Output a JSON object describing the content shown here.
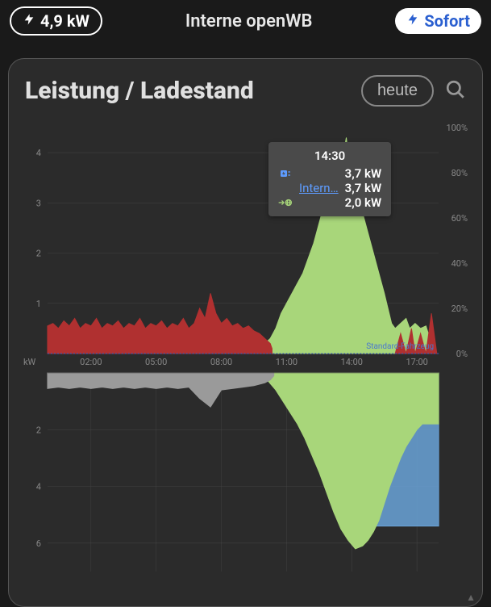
{
  "topbar": {
    "power_value": "4,9 kW",
    "title": "Interne openWB",
    "sofort_label": "Sofort"
  },
  "card": {
    "title": "Leistung / Ladestand",
    "range_btn": "heute"
  },
  "tooltip": {
    "time": "14:30",
    "row1": {
      "value": "3,7 kW",
      "color": "#5e9cff"
    },
    "row2": {
      "label": "Intern…",
      "value": "3,7 kW"
    },
    "row3": {
      "value": "2,0 kW",
      "color": "#a8d67a"
    }
  },
  "chart": {
    "type": "area-combo",
    "x_hours": [
      "02:00",
      "05:00",
      "08:00",
      "11:00",
      "14:00",
      "17:00"
    ],
    "y_top_ticks": [
      1,
      2,
      3,
      4
    ],
    "y_top_unit": "kW",
    "y_right_ticks_pct": [
      "0%",
      "20%",
      "40%",
      "60%",
      "80%",
      "100%"
    ],
    "y_bottom_ticks": [
      2,
      4,
      6
    ],
    "baseline_y": 0,
    "annotation_label": "Standard-Fahrzeug",
    "colors": {
      "red": "#b03030",
      "green": "#a8d67a",
      "gray": "#9a9a9a",
      "blue": "#6aa3d8",
      "baseline": "#3a5fc8",
      "grid": "#444444",
      "bg": "#2b2b2b",
      "text": "#888888"
    },
    "x_range_minutes": [
      0,
      1080
    ],
    "top_y_range_kw": [
      0,
      4.5
    ],
    "bottom_y_range_kw": [
      0,
      7
    ],
    "series_red_top": [
      [
        0,
        0.55
      ],
      [
        15,
        0.6
      ],
      [
        30,
        0.5
      ],
      [
        45,
        0.65
      ],
      [
        60,
        0.55
      ],
      [
        75,
        0.7
      ],
      [
        90,
        0.5
      ],
      [
        105,
        0.6
      ],
      [
        120,
        0.55
      ],
      [
        135,
        0.7
      ],
      [
        150,
        0.5
      ],
      [
        165,
        0.6
      ],
      [
        180,
        0.55
      ],
      [
        195,
        0.65
      ],
      [
        210,
        0.5
      ],
      [
        225,
        0.6
      ],
      [
        240,
        0.55
      ],
      [
        255,
        0.7
      ],
      [
        270,
        0.5
      ],
      [
        285,
        0.6
      ],
      [
        300,
        0.55
      ],
      [
        315,
        0.65
      ],
      [
        330,
        0.5
      ],
      [
        345,
        0.6
      ],
      [
        360,
        0.55
      ],
      [
        375,
        0.7
      ],
      [
        390,
        0.5
      ],
      [
        405,
        0.6
      ],
      [
        420,
        0.9
      ],
      [
        435,
        0.7
      ],
      [
        450,
        1.2
      ],
      [
        465,
        0.8
      ],
      [
        480,
        0.6
      ],
      [
        495,
        0.7
      ],
      [
        510,
        0.55
      ],
      [
        525,
        0.6
      ],
      [
        540,
        0.5
      ],
      [
        555,
        0.55
      ],
      [
        570,
        0.45
      ],
      [
        585,
        0.4
      ],
      [
        600,
        0.3
      ],
      [
        615,
        0.2
      ],
      [
        620,
        0.1
      ]
    ],
    "series_green_top": [
      [
        585,
        0.0
      ],
      [
        600,
        0.2
      ],
      [
        615,
        0.3
      ],
      [
        630,
        0.5
      ],
      [
        645,
        0.8
      ],
      [
        660,
        1.0
      ],
      [
        675,
        1.2
      ],
      [
        690,
        1.4
      ],
      [
        705,
        1.6
      ],
      [
        720,
        1.9
      ],
      [
        735,
        2.2
      ],
      [
        750,
        2.6
      ],
      [
        765,
        3.0
      ],
      [
        780,
        3.4
      ],
      [
        795,
        3.8
      ],
      [
        805,
        4.2
      ],
      [
        815,
        3.9
      ],
      [
        825,
        4.3
      ],
      [
        835,
        3.6
      ],
      [
        845,
        4.0
      ],
      [
        855,
        3.2
      ],
      [
        870,
        2.8
      ],
      [
        885,
        2.4
      ],
      [
        900,
        2.0
      ],
      [
        915,
        1.6
      ],
      [
        930,
        1.2
      ],
      [
        940,
        0.9
      ],
      [
        950,
        0.6
      ],
      [
        960,
        0.5
      ],
      [
        975,
        0.6
      ],
      [
        990,
        0.7
      ],
      [
        1000,
        0.5
      ],
      [
        1015,
        0.6
      ],
      [
        1030,
        0.5
      ],
      [
        1045,
        0.55
      ],
      [
        1060,
        0.2
      ]
    ],
    "series_red_top_right": [
      [
        960,
        0.0
      ],
      [
        975,
        0.4
      ],
      [
        990,
        0.0
      ],
      [
        1005,
        0.5
      ],
      [
        1015,
        0.0
      ],
      [
        1030,
        0.4
      ],
      [
        1045,
        0.0
      ],
      [
        1060,
        0.8
      ],
      [
        1075,
        0.0
      ]
    ],
    "series_gray_bottom": [
      [
        0,
        0.55
      ],
      [
        30,
        0.5
      ],
      [
        60,
        0.55
      ],
      [
        90,
        0.5
      ],
      [
        120,
        0.55
      ],
      [
        150,
        0.5
      ],
      [
        180,
        0.55
      ],
      [
        210,
        0.5
      ],
      [
        240,
        0.55
      ],
      [
        270,
        0.5
      ],
      [
        300,
        0.55
      ],
      [
        330,
        0.5
      ],
      [
        360,
        0.55
      ],
      [
        390,
        0.5
      ],
      [
        420,
        0.9
      ],
      [
        450,
        1.2
      ],
      [
        480,
        0.6
      ],
      [
        510,
        0.55
      ],
      [
        540,
        0.5
      ],
      [
        570,
        0.45
      ],
      [
        600,
        0.35
      ],
      [
        615,
        0.25
      ],
      [
        625,
        0.1
      ]
    ],
    "series_green_bottom": [
      [
        590,
        0.0
      ],
      [
        610,
        0.3
      ],
      [
        630,
        0.6
      ],
      [
        650,
        1.0
      ],
      [
        670,
        1.4
      ],
      [
        690,
        1.8
      ],
      [
        710,
        2.3
      ],
      [
        730,
        2.9
      ],
      [
        750,
        3.5
      ],
      [
        770,
        4.2
      ],
      [
        790,
        4.9
      ],
      [
        810,
        5.5
      ],
      [
        830,
        5.9
      ],
      [
        850,
        6.2
      ],
      [
        870,
        6.1
      ],
      [
        885,
        5.9
      ],
      [
        900,
        5.6
      ],
      [
        915,
        5.2
      ],
      [
        930,
        4.6
      ],
      [
        945,
        4.0
      ],
      [
        960,
        3.5
      ],
      [
        975,
        3.0
      ],
      [
        990,
        2.6
      ],
      [
        1005,
        2.3
      ],
      [
        1020,
        2.0
      ],
      [
        1035,
        1.8
      ],
      [
        1050,
        1.8
      ],
      [
        1065,
        1.8
      ],
      [
        1080,
        1.8
      ]
    ],
    "series_blue_bottom": [
      [
        750,
        0.0
      ],
      [
        750,
        1.8
      ],
      [
        780,
        1.8
      ],
      [
        780,
        3.6
      ],
      [
        870,
        3.6
      ],
      [
        870,
        5.4
      ],
      [
        930,
        5.4
      ],
      [
        990,
        5.4
      ],
      [
        1050,
        5.4
      ],
      [
        1080,
        5.4
      ],
      [
        1080,
        0.0
      ]
    ]
  }
}
